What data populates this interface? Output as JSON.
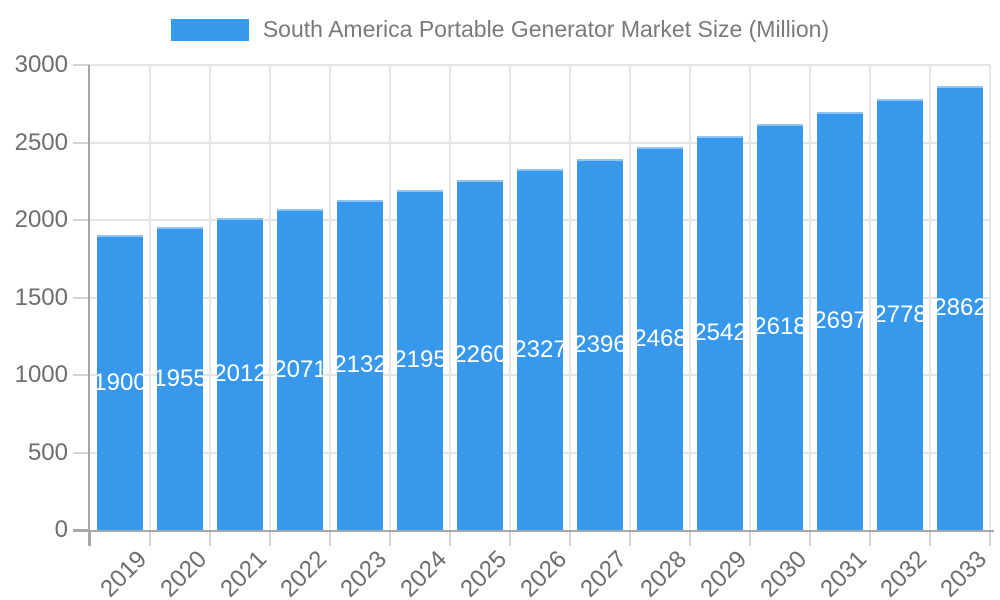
{
  "chart_data": {
    "type": "bar",
    "title": "South America Portable Generator Market Size (Million)",
    "categories": [
      "2019",
      "2020",
      "2021",
      "2022",
      "2023",
      "2024",
      "2025",
      "2026",
      "2027",
      "2028",
      "2029",
      "2030",
      "2031",
      "2032",
      "2033"
    ],
    "series": [
      {
        "name": "South America Portable Generator Market Size (Million)",
        "values": [
          1900,
          1955,
          2012,
          2071,
          2132,
          2195,
          2260,
          2327,
          2396,
          2468,
          2542,
          2618,
          2697,
          2778,
          2862
        ]
      }
    ],
    "xlabel": "",
    "ylabel": "",
    "ylim": [
      0,
      3000
    ],
    "yticks": [
      0,
      500,
      1000,
      1500,
      2000,
      2500,
      3000
    ],
    "grid": true,
    "legend_position": "top",
    "value_labels_shown": true,
    "colors": {
      "bar_fill": "#3899EC",
      "bar_top_border": "#8FC3F1",
      "value_label_text": "#FFFFFF",
      "axis_line": "#A6A6A6",
      "gridline": "#E5E5E5",
      "tick_mark": "#D4D4D4",
      "axis_label_text": "#6E6E6E",
      "legend_text": "#7A7A7A"
    }
  }
}
